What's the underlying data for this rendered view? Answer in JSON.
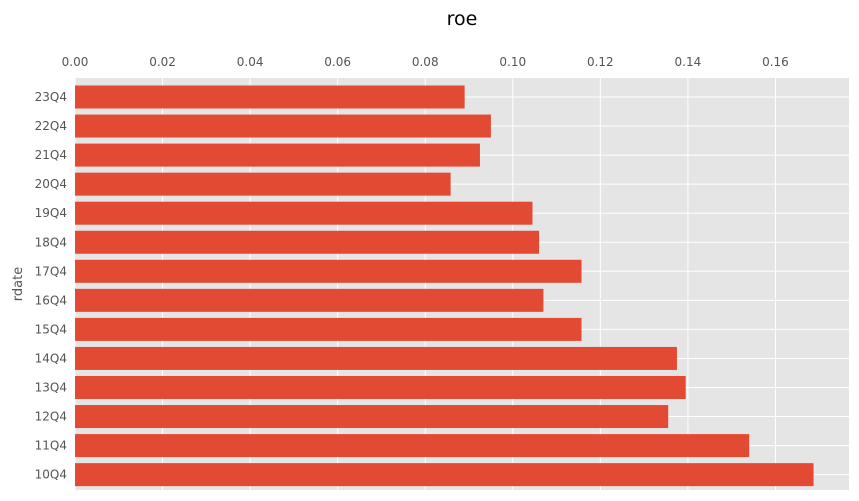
{
  "chart_data": {
    "type": "bar",
    "orientation": "horizontal",
    "title": "roe",
    "xlabel": "",
    "ylabel": "rdate",
    "x_axis_position": "top",
    "xlim": [
      0,
      0.1768
    ],
    "x_ticks": [
      "0.00",
      "0.02",
      "0.04",
      "0.06",
      "0.08",
      "0.10",
      "0.12",
      "0.14",
      "0.16"
    ],
    "categories": [
      "23Q4",
      "22Q4",
      "21Q4",
      "20Q4",
      "19Q4",
      "18Q4",
      "17Q4",
      "16Q4",
      "15Q4",
      "14Q4",
      "13Q4",
      "12Q4",
      "11Q4",
      "10Q4"
    ],
    "values": [
      0.089,
      0.095,
      0.0925,
      0.0858,
      0.1045,
      0.106,
      0.1157,
      0.107,
      0.1157,
      0.1375,
      0.1395,
      0.1355,
      0.154,
      0.1687
    ],
    "bar_color": "#E24A33",
    "background_color": "#E5E5E5",
    "grid": true,
    "legend": "none"
  }
}
